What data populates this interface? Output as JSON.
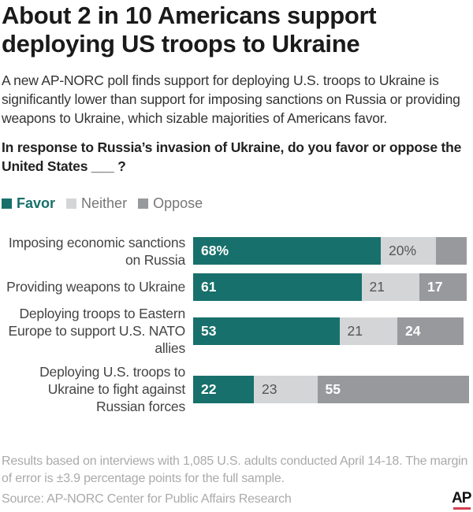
{
  "title": "About 2 in 10 Americans support deploying US troops to Ukraine",
  "subtitle": "A new AP-NORC poll finds support for deploying U.S. troops to Ukraine is significantly lower than support for imposing sanctions on Russia or providing weapons to Ukraine, which sizable majorities of Americans favor.",
  "question": "In response to Russia’s invasion of Ukraine, do you favor or oppose the United States ___ ?",
  "note": "Results based on interviews with 1,085 U.S. adults conducted April 14-18. The margin of error is ±3.9 percentage points for the full sample.",
  "source": "Source: AP-NORC Center for Public Affairs Research",
  "logo": "AP",
  "colors": {
    "favor": "#17706b",
    "neither": "#d4d5d7",
    "oppose": "#98999d"
  },
  "chart_data": {
    "type": "bar",
    "orientation": "horizontal",
    "stacked": true,
    "xlim": [
      0,
      100
    ],
    "grid": false,
    "legend_position": "top-left",
    "categories": [
      "Imposing economic sanctions on Russia",
      "Providing weapons to Ukraine",
      "Deploying troops to Eastern Europe to support U.S. NATO allies",
      "Deploying U.S. troops to Ukraine to fight against Russian forces"
    ],
    "series": [
      {
        "name": "Favor",
        "values": [
          68,
          61,
          53,
          22
        ],
        "labels": [
          "68%",
          "61",
          "53",
          "22"
        ]
      },
      {
        "name": "Neither",
        "values": [
          20,
          21,
          21,
          23
        ],
        "labels": [
          "20%",
          "21",
          "21",
          "23"
        ]
      },
      {
        "name": "Oppose",
        "values": [
          11,
          17,
          24,
          55
        ],
        "labels": [
          "",
          "17",
          "24",
          "55"
        ]
      }
    ]
  }
}
